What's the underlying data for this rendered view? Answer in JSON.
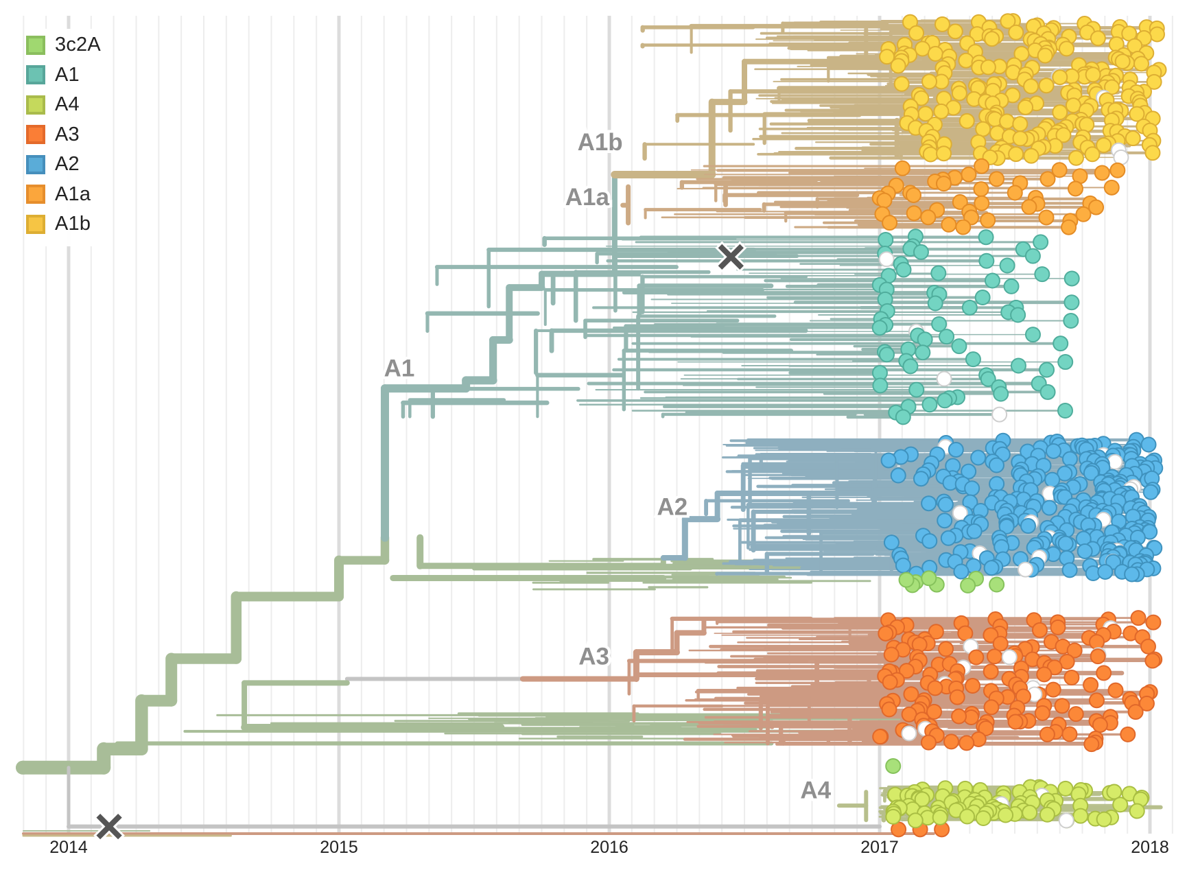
{
  "chart_data": {
    "type": "tree",
    "title": "",
    "xlabel": "",
    "ylabel": "",
    "x_axis": {
      "type": "time",
      "range": [
        2013.83,
        2018.1
      ],
      "major_ticks": [
        2014,
        2015,
        2016,
        2017,
        2018
      ],
      "tick_labels": [
        "2014",
        "2015",
        "2016",
        "2017",
        "2018"
      ],
      "minor_grid": "monthly",
      "grid": true
    },
    "legend": {
      "placement": "top-left",
      "title": "",
      "items": [
        {
          "label": "3c2A",
          "color": "#A0D870",
          "border": "#8BBE5E"
        },
        {
          "label": "A1",
          "color": "#6CC2B2",
          "border": "#58A69A"
        },
        {
          "label": "A4",
          "color": "#C5D95C",
          "border": "#A9BB4C"
        },
        {
          "label": "A3",
          "color": "#FA7E36",
          "border": "#E46A2B"
        },
        {
          "label": "A2",
          "color": "#5AACD8",
          "border": "#468FBC"
        },
        {
          "label": "A1a",
          "color": "#FBA63C",
          "border": "#E68E2D"
        },
        {
          "label": "A1b",
          "color": "#F6C544",
          "border": "#DDAE33"
        }
      ]
    },
    "branch_colors": {
      "3c2A": "#A8BD98",
      "A1": "#94B7B1",
      "A1a": "#CDAA84",
      "A1b": "#C9B486",
      "A2": "#8EAFBF",
      "A3": "#CD9A82",
      "A4": "#B7BF8C",
      "unassigned": "#C4C4C4"
    },
    "tip_colors": {
      "3c2A": {
        "fill": "#A8E07A",
        "stroke": "#86C25C"
      },
      "A1": {
        "fill": "#73D4C2",
        "stroke": "#4FAD9C"
      },
      "A1a": {
        "fill": "#FDAE40",
        "stroke": "#E48C26"
      },
      "A1b": {
        "fill": "#FCD94A",
        "stroke": "#DDAE33"
      },
      "A2": {
        "fill": "#5DB9EA",
        "stroke": "#3F92BE"
      },
      "A3": {
        "fill": "#FC8838",
        "stroke": "#E0682A"
      },
      "A4": {
        "fill": "#D6EB68",
        "stroke": "#A9BE43"
      },
      "unassigned": {
        "fill": "#FFFFFF",
        "stroke": "#CFCFCF"
      }
    },
    "clade_labels": [
      {
        "label": "A1b",
        "date": 2016.05
      },
      {
        "label": "A1a",
        "date": 2016.0
      },
      {
        "label": "A1",
        "date": 2015.28
      },
      {
        "label": "A2",
        "date": 2016.29
      },
      {
        "label": "A3",
        "date": 2016.0
      },
      {
        "label": "A4",
        "date": 2016.82
      }
    ],
    "clades": [
      {
        "name": "A1b",
        "root_date": 2016.03,
        "tips": 230,
        "tip_range": [
          2017.0,
          2018.04
        ],
        "rows": [
          0.0,
          0.17
        ]
      },
      {
        "name": "A1a",
        "root_date": 2016.08,
        "tips": 45,
        "tip_range": [
          2017.0,
          2017.9
        ],
        "rows": [
          0.18,
          0.255
        ]
      },
      {
        "name": "A1",
        "root_date": 2015.17,
        "tips": 75,
        "tip_range": [
          2017.0,
          2017.75
        ],
        "rows": [
          0.265,
          0.49
        ]
      },
      {
        "name": "A2",
        "root_date": 2016.27,
        "tips": 300,
        "tip_range": [
          2017.0,
          2018.02
        ],
        "rows": [
          0.52,
          0.685
        ]
      },
      {
        "name": "3c2A",
        "root_date": 2013.83,
        "tips": 8,
        "tip_range": [
          2017.0,
          2017.5
        ],
        "rows": [
          0.69,
          0.7
        ]
      },
      {
        "name": "A3",
        "root_date": 2015.92,
        "tips": 160,
        "tip_range": [
          2017.0,
          2018.02
        ],
        "rows": [
          0.74,
          0.895
        ]
      },
      {
        "name": "A4",
        "root_date": 2016.95,
        "tips": 90,
        "tip_range": [
          2017.05,
          2017.97
        ],
        "rows": [
          0.95,
          0.99
        ]
      }
    ],
    "markers": [
      {
        "type": "cross",
        "date": 2016.45,
        "row": 0.292
      },
      {
        "type": "cross",
        "date": 2014.15,
        "row": 0.998
      }
    ]
  }
}
